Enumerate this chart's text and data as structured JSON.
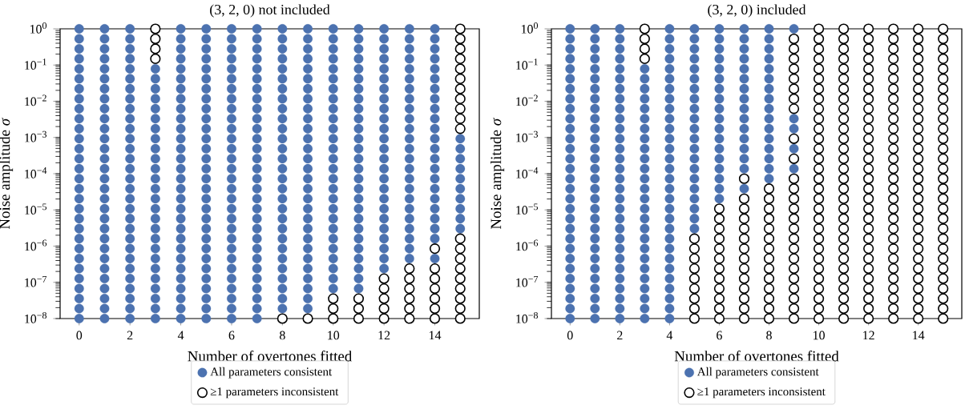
{
  "chart_data": [
    {
      "type": "scatter",
      "title": "(3, 2, 0) not included",
      "xlabel": "Number of overtones fitted",
      "ylabel": "Noise amplitude *σ*",
      "xlim": [
        -0.75,
        15.75
      ],
      "ylim": [
        1e-08,
        1
      ],
      "log": "y",
      "legend": "bottom",
      "marker": "circle",
      "xticks": [
        0,
        2,
        4,
        6,
        8,
        10,
        12,
        14
      ],
      "yticks": [
        {
          "value": 1e-08,
          "label": "10$^{−8}$"
        },
        {
          "value": 1e-07,
          "label": "10$^{−7}$"
        },
        {
          "value": 1e-06,
          "label": "10$^{−6}$"
        },
        {
          "value": 1e-05,
          "label": "10$^{−5}$"
        },
        {
          "value": 0.0001,
          "label": "10$^{−4}$"
        },
        {
          "value": 0.001,
          "label": "10$^{−3}$"
        },
        {
          "value": 0.01,
          "label": "10$^{−2}$"
        },
        {
          "value": 0.1,
          "label": "10$^{−1}$"
        },
        {
          "value": 1,
          "label": "10$^{0}$"
        }
      ],
      "series": [
        {
          "name": "All parameters consistent",
          "color": "#4c72b0",
          "x": [
            0,
            0,
            0,
            0,
            0,
            0,
            0,
            0,
            0,
            0,
            0,
            0,
            0,
            0,
            0,
            0,
            0,
            0,
            0,
            0,
            0,
            0,
            0,
            0,
            0,
            0,
            0,
            0,
            0,
            0,
            1,
            1,
            1,
            1,
            1,
            1,
            1,
            1,
            1,
            1,
            1,
            1,
            1,
            1,
            1,
            1,
            1,
            1,
            1,
            1,
            1,
            1,
            1,
            1,
            1,
            1,
            1,
            1,
            1,
            1,
            2,
            2,
            2,
            2,
            2,
            2,
            2,
            2,
            2,
            2,
            2,
            2,
            2,
            2,
            2,
            2,
            2,
            2,
            2,
            2,
            2,
            2,
            2,
            2,
            2,
            2,
            2,
            2,
            2,
            2,
            3,
            3,
            3,
            3,
            3,
            3,
            3,
            3,
            3,
            3,
            3,
            3,
            3,
            3,
            3,
            3,
            3,
            3,
            3,
            3,
            3,
            3,
            3,
            3,
            3,
            3,
            4,
            4,
            4,
            4,
            4,
            4,
            4,
            4,
            4,
            4,
            4,
            4,
            4,
            4,
            4,
            4,
            4,
            4,
            4,
            4,
            4,
            4,
            4,
            4,
            4,
            4,
            4,
            4,
            4,
            4,
            5,
            5,
            5,
            5,
            5,
            5,
            5,
            5,
            5,
            5,
            5,
            5,
            5,
            5,
            5,
            5,
            5,
            5,
            5,
            5,
            5,
            5,
            5,
            5,
            5,
            5,
            5,
            5,
            5,
            5,
            6,
            6,
            6,
            6,
            6,
            6,
            6,
            6,
            6,
            6,
            6,
            6,
            6,
            6,
            6,
            6,
            6,
            6,
            6,
            6,
            6,
            6,
            6,
            6,
            6,
            6,
            6,
            6,
            6,
            6,
            7,
            7,
            7,
            7,
            7,
            7,
            7,
            7,
            7,
            7,
            7,
            7,
            7,
            7,
            7,
            7,
            7,
            7,
            7,
            7,
            7,
            7,
            7,
            7,
            7,
            7,
            7,
            7,
            7,
            7,
            8,
            8,
            8,
            8,
            8,
            8,
            8,
            8,
            8,
            8,
            8,
            8,
            8,
            8,
            8,
            8,
            8,
            8,
            8,
            8,
            8,
            8,
            8,
            8,
            8,
            8,
            8,
            8,
            8,
            9,
            9,
            9,
            9,
            9,
            9,
            9,
            9,
            9,
            9,
            9,
            9,
            9,
            9,
            9,
            9,
            9,
            9,
            9,
            9,
            9,
            9,
            9,
            9,
            9,
            9,
            9,
            9,
            9,
            10,
            10,
            10,
            10,
            10,
            10,
            10,
            10,
            10,
            10,
            10,
            10,
            10,
            10,
            10,
            10,
            10,
            10,
            10,
            10,
            10,
            10,
            10,
            10,
            10,
            10,
            10,
            11,
            11,
            11,
            11,
            11,
            11,
            11,
            11,
            11,
            11,
            11,
            11,
            11,
            11,
            11,
            11,
            11,
            11,
            11,
            11,
            11,
            11,
            11,
            11,
            11,
            11,
            11,
            12,
            12,
            12,
            12,
            12,
            12,
            12,
            12,
            12,
            12,
            12,
            12,
            12,
            12,
            12,
            12,
            12,
            12,
            12,
            12,
            12,
            12,
            12,
            12,
            12,
            13,
            13,
            13,
            13,
            13,
            13,
            13,
            13,
            13,
            13,
            13,
            13,
            13,
            13,
            13,
            13,
            13,
            13,
            13,
            13,
            13,
            13,
            13,
            13,
            14,
            14,
            14,
            14,
            14,
            14,
            14,
            14,
            14,
            14,
            14,
            14,
            14,
            14,
            14,
            14,
            14,
            14,
            14,
            14,
            14,
            14,
            14,
            15,
            15,
            15,
            15,
            15,
            15,
            15,
            15,
            15,
            15
          ],
          "values": [
            1e-08,
            1.89e-08,
            3.56e-08,
            6.72e-08,
            1.27e-07,
            2.4e-07,
            4.52e-07,
            8.53e-07,
            1.61e-06,
            3.04e-06,
            5.74e-06,
            1.08e-05,
            2.04e-05,
            3.86e-05,
            7.28e-05,
            0.000137,
            0.000259,
            0.000489,
            0.000924,
            0.00174,
            0.00329,
            0.00621,
            0.0117,
            0.0221,
            0.0418,
            0.0788,
            0.149,
            0.281,
            0.53,
            1,
            1e-08,
            1.89e-08,
            3.56e-08,
            6.72e-08,
            1.27e-07,
            2.4e-07,
            4.52e-07,
            8.53e-07,
            1.61e-06,
            3.04e-06,
            5.74e-06,
            1.08e-05,
            2.04e-05,
            3.86e-05,
            7.28e-05,
            0.000137,
            0.000259,
            0.000489,
            0.000924,
            0.00174,
            0.00329,
            0.00621,
            0.0117,
            0.0221,
            0.0418,
            0.0788,
            0.149,
            0.281,
            0.53,
            1,
            1e-08,
            1.89e-08,
            3.56e-08,
            6.72e-08,
            1.27e-07,
            2.4e-07,
            4.52e-07,
            8.53e-07,
            1.61e-06,
            3.04e-06,
            5.74e-06,
            1.08e-05,
            2.04e-05,
            3.86e-05,
            7.28e-05,
            0.000137,
            0.000259,
            0.000489,
            0.000924,
            0.00174,
            0.00329,
            0.00621,
            0.0117,
            0.0221,
            0.0418,
            0.0788,
            0.149,
            0.281,
            0.53,
            1,
            1e-08,
            1.89e-08,
            3.56e-08,
            6.72e-08,
            1.27e-07,
            2.4e-07,
            4.52e-07,
            8.53e-07,
            1.61e-06,
            3.04e-06,
            5.74e-06,
            1.08e-05,
            2.04e-05,
            3.86e-05,
            7.28e-05,
            0.000137,
            0.000259,
            0.000489,
            0.000924,
            0.00174,
            0.00329,
            0.00621,
            0.0117,
            0.0221,
            0.0418,
            0.0788,
            1e-08,
            1.89e-08,
            3.56e-08,
            6.72e-08,
            1.27e-07,
            2.4e-07,
            4.52e-07,
            8.53e-07,
            1.61e-06,
            3.04e-06,
            5.74e-06,
            1.08e-05,
            2.04e-05,
            3.86e-05,
            7.28e-05,
            0.000137,
            0.000259,
            0.000489,
            0.000924,
            0.00174,
            0.00329,
            0.00621,
            0.0117,
            0.0221,
            0.0418,
            0.0788,
            0.149,
            0.281,
            0.53,
            1,
            1e-08,
            1.89e-08,
            3.56e-08,
            6.72e-08,
            1.27e-07,
            2.4e-07,
            4.52e-07,
            8.53e-07,
            1.61e-06,
            3.04e-06,
            5.74e-06,
            1.08e-05,
            2.04e-05,
            3.86e-05,
            7.28e-05,
            0.000137,
            0.000259,
            0.000489,
            0.000924,
            0.00174,
            0.00329,
            0.00621,
            0.0117,
            0.0221,
            0.0418,
            0.0788,
            0.149,
            0.281,
            0.53,
            1,
            1e-08,
            1.89e-08,
            3.56e-08,
            6.72e-08,
            1.27e-07,
            2.4e-07,
            4.52e-07,
            8.53e-07,
            1.61e-06,
            3.04e-06,
            5.74e-06,
            1.08e-05,
            2.04e-05,
            3.86e-05,
            7.28e-05,
            0.000137,
            0.000259,
            0.000489,
            0.000924,
            0.00174,
            0.00329,
            0.00621,
            0.0117,
            0.0221,
            0.0418,
            0.0788,
            0.149,
            0.281,
            0.53,
            1,
            1e-08,
            1.89e-08,
            3.56e-08,
            6.72e-08,
            1.27e-07,
            2.4e-07,
            4.52e-07,
            8.53e-07,
            1.61e-06,
            3.04e-06,
            5.74e-06,
            1.08e-05,
            2.04e-05,
            3.86e-05,
            7.28e-05,
            0.000137,
            0.000259,
            0.000489,
            0.000924,
            0.00174,
            0.00329,
            0.00621,
            0.0117,
            0.0221,
            0.0418,
            0.0788,
            0.149,
            0.281,
            0.53,
            1,
            1.89e-08,
            3.56e-08,
            6.72e-08,
            1.27e-07,
            2.4e-07,
            4.52e-07,
            8.53e-07,
            1.61e-06,
            3.04e-06,
            5.74e-06,
            1.08e-05,
            2.04e-05,
            3.86e-05,
            7.28e-05,
            0.000137,
            0.000259,
            0.000489,
            0.000924,
            0.00174,
            0.00329,
            0.00621,
            0.0117,
            0.0221,
            0.0418,
            0.0788,
            0.149,
            0.281,
            0.53,
            1,
            1.89e-08,
            3.56e-08,
            6.72e-08,
            1.27e-07,
            2.4e-07,
            4.52e-07,
            8.53e-07,
            1.61e-06,
            3.04e-06,
            5.74e-06,
            1.08e-05,
            2.04e-05,
            3.86e-05,
            7.28e-05,
            0.000137,
            0.000259,
            0.000489,
            0.000924,
            0.00174,
            0.00329,
            0.00621,
            0.0117,
            0.0221,
            0.0418,
            0.0788,
            0.149,
            0.281,
            0.53,
            1,
            6.72e-08,
            1.27e-07,
            2.4e-07,
            4.52e-07,
            8.53e-07,
            1.61e-06,
            3.04e-06,
            5.74e-06,
            1.08e-05,
            2.04e-05,
            3.86e-05,
            7.28e-05,
            0.000137,
            0.000259,
            0.000489,
            0.000924,
            0.00174,
            0.00329,
            0.00621,
            0.0117,
            0.0221,
            0.0418,
            0.0788,
            0.149,
            0.281,
            0.53,
            1,
            6.72e-08,
            1.27e-07,
            2.4e-07,
            4.52e-07,
            8.53e-07,
            1.61e-06,
            3.04e-06,
            5.74e-06,
            1.08e-05,
            2.04e-05,
            3.86e-05,
            7.28e-05,
            0.000137,
            0.000259,
            0.000489,
            0.000924,
            0.00174,
            0.00329,
            0.00621,
            0.0117,
            0.0221,
            0.0418,
            0.0788,
            0.149,
            0.281,
            0.53,
            1,
            2.4e-07,
            4.52e-07,
            8.53e-07,
            1.61e-06,
            3.04e-06,
            5.74e-06,
            1.08e-05,
            2.04e-05,
            3.86e-05,
            7.28e-05,
            0.000137,
            0.000259,
            0.000489,
            0.000924,
            0.00174,
            0.00329,
            0.00621,
            0.0117,
            0.0221,
            0.0418,
            0.0788,
            0.149,
            0.281,
            0.53,
            1,
            4.52e-07,
            8.53e-07,
            1.61e-06,
            3.04e-06,
            5.74e-06,
            1.08e-05,
            2.04e-05,
            3.86e-05,
            7.28e-05,
            0.000137,
            0.000259,
            0.000489,
            0.000924,
            0.00174,
            0.00329,
            0.00621,
            0.0117,
            0.0221,
            0.0418,
            0.0788,
            0.149,
            0.281,
            0.53,
            1,
            4.52e-07,
            1.61e-06,
            3.04e-06,
            5.74e-06,
            1.08e-05,
            2.04e-05,
            3.86e-05,
            7.28e-05,
            0.000137,
            0.000259,
            0.000489,
            0.000924,
            0.00174,
            0.00329,
            0.00621,
            0.0117,
            0.0221,
            0.0418,
            0.0788,
            0.149,
            0.281,
            0.53,
            1,
            3.04e-06,
            5.74e-06,
            1.08e-05,
            2.04e-05,
            3.86e-05,
            7.28e-05,
            0.000137,
            0.000259,
            0.000489,
            0.000924
          ]
        },
        {
          "name": "≥1 parameters inconsistent",
          "color": "#000000",
          "x": [
            3,
            3,
            3,
            3,
            8,
            9,
            10,
            10,
            10,
            11,
            11,
            11,
            12,
            12,
            12,
            12,
            12,
            13,
            13,
            13,
            13,
            13,
            13,
            14,
            14,
            14,
            14,
            14,
            14,
            14,
            15,
            15,
            15,
            15,
            15,
            15,
            15,
            15,
            15,
            15,
            15,
            15,
            15,
            15,
            15,
            15,
            15,
            15,
            15,
            15
          ],
          "values": [
            0.149,
            0.281,
            0.53,
            1,
            1e-08,
            1e-08,
            1e-08,
            1.89e-08,
            3.56e-08,
            1e-08,
            1.89e-08,
            3.56e-08,
            1e-08,
            1.89e-08,
            3.56e-08,
            6.72e-08,
            1.27e-07,
            1e-08,
            1.89e-08,
            3.56e-08,
            6.72e-08,
            1.27e-07,
            2.4e-07,
            1e-08,
            1.89e-08,
            3.56e-08,
            6.72e-08,
            1.27e-07,
            2.4e-07,
            8.53e-07,
            1e-08,
            1.89e-08,
            3.56e-08,
            6.72e-08,
            1.27e-07,
            2.4e-07,
            4.52e-07,
            8.53e-07,
            1.61e-06,
            0.00174,
            0.00329,
            0.00621,
            0.0117,
            0.0221,
            0.0418,
            0.0788,
            0.149,
            0.281,
            0.53,
            1
          ]
        }
      ]
    },
    {
      "type": "scatter",
      "title": "(3, 2, 0) included",
      "xlabel": "Number of overtones fitted",
      "ylabel": "Noise amplitude *σ*",
      "xlim": [
        -0.75,
        15.75
      ],
      "ylim": [
        1e-08,
        1
      ],
      "log": "y",
      "legend": "bottom",
      "marker": "circle",
      "xticks": [
        0,
        2,
        4,
        6,
        8,
        10,
        12,
        14
      ],
      "yticks": [
        {
          "value": 1e-08,
          "label": "10$^{−8}$"
        },
        {
          "value": 1e-07,
          "label": "10$^{−7}$"
        },
        {
          "value": 1e-06,
          "label": "10$^{−6}$"
        },
        {
          "value": 1e-05,
          "label": "10$^{−5}$"
        },
        {
          "value": 0.0001,
          "label": "10$^{−4}$"
        },
        {
          "value": 0.001,
          "label": "10$^{−3}$"
        },
        {
          "value": 0.01,
          "label": "10$^{−2}$"
        },
        {
          "value": 0.1,
          "label": "10$^{−1}$"
        },
        {
          "value": 1,
          "label": "10$^{0}$"
        }
      ],
      "series": [
        {
          "name": "All parameters consistent",
          "color": "#4c72b0",
          "x": [
            0,
            0,
            0,
            0,
            0,
            0,
            0,
            0,
            0,
            0,
            0,
            0,
            0,
            0,
            0,
            0,
            0,
            0,
            0,
            0,
            0,
            0,
            0,
            0,
            0,
            0,
            0,
            0,
            0,
            0,
            1,
            1,
            1,
            1,
            1,
            1,
            1,
            1,
            1,
            1,
            1,
            1,
            1,
            1,
            1,
            1,
            1,
            1,
            1,
            1,
            1,
            1,
            1,
            1,
            1,
            1,
            1,
            1,
            1,
            1,
            2,
            2,
            2,
            2,
            2,
            2,
            2,
            2,
            2,
            2,
            2,
            2,
            2,
            2,
            2,
            2,
            2,
            2,
            2,
            2,
            2,
            2,
            2,
            2,
            2,
            2,
            2,
            2,
            2,
            2,
            3,
            3,
            3,
            3,
            3,
            3,
            3,
            3,
            3,
            3,
            3,
            3,
            3,
            3,
            3,
            3,
            3,
            3,
            3,
            3,
            3,
            3,
            3,
            3,
            3,
            3,
            4,
            4,
            4,
            4,
            4,
            4,
            4,
            4,
            4,
            4,
            4,
            4,
            4,
            4,
            4,
            4,
            4,
            4,
            4,
            4,
            4,
            4,
            4,
            4,
            4,
            4,
            4,
            4,
            4,
            4,
            5,
            5,
            5,
            5,
            5,
            5,
            5,
            5,
            5,
            5,
            5,
            5,
            5,
            5,
            5,
            5,
            5,
            5,
            5,
            5,
            5,
            6,
            6,
            6,
            6,
            6,
            6,
            6,
            6,
            6,
            6,
            6,
            6,
            6,
            6,
            6,
            6,
            6,
            6,
            7,
            7,
            7,
            7,
            7,
            7,
            7,
            7,
            7,
            7,
            7,
            7,
            7,
            7,
            7,
            7,
            8,
            8,
            8,
            8,
            8,
            8,
            8,
            8,
            8,
            8,
            8,
            8,
            8,
            8,
            8,
            8,
            9,
            9,
            9,
            9,
            9
          ],
          "values": [
            1e-08,
            1.89e-08,
            3.56e-08,
            6.72e-08,
            1.27e-07,
            2.4e-07,
            4.52e-07,
            8.53e-07,
            1.61e-06,
            3.04e-06,
            5.74e-06,
            1.08e-05,
            2.04e-05,
            3.86e-05,
            7.28e-05,
            0.000137,
            0.000259,
            0.000489,
            0.000924,
            0.00174,
            0.00329,
            0.00621,
            0.0117,
            0.0221,
            0.0418,
            0.0788,
            0.149,
            0.281,
            0.53,
            1,
            1e-08,
            1.89e-08,
            3.56e-08,
            6.72e-08,
            1.27e-07,
            2.4e-07,
            4.52e-07,
            8.53e-07,
            1.61e-06,
            3.04e-06,
            5.74e-06,
            1.08e-05,
            2.04e-05,
            3.86e-05,
            7.28e-05,
            0.000137,
            0.000259,
            0.000489,
            0.000924,
            0.00174,
            0.00329,
            0.00621,
            0.0117,
            0.0221,
            0.0418,
            0.0788,
            0.149,
            0.281,
            0.53,
            1,
            1e-08,
            1.89e-08,
            3.56e-08,
            6.72e-08,
            1.27e-07,
            2.4e-07,
            4.52e-07,
            8.53e-07,
            1.61e-06,
            3.04e-06,
            5.74e-06,
            1.08e-05,
            2.04e-05,
            3.86e-05,
            7.28e-05,
            0.000137,
            0.000259,
            0.000489,
            0.000924,
            0.00174,
            0.00329,
            0.00621,
            0.0117,
            0.0221,
            0.0418,
            0.0788,
            0.149,
            0.281,
            0.53,
            1,
            1e-08,
            1.89e-08,
            3.56e-08,
            6.72e-08,
            1.27e-07,
            2.4e-07,
            4.52e-07,
            8.53e-07,
            1.61e-06,
            3.04e-06,
            5.74e-06,
            1.08e-05,
            2.04e-05,
            3.86e-05,
            7.28e-05,
            0.000137,
            0.000259,
            0.000489,
            0.000924,
            0.00174,
            0.00329,
            0.00621,
            0.0117,
            0.0221,
            0.0418,
            0.0788,
            1e-08,
            1.89e-08,
            3.56e-08,
            6.72e-08,
            1.27e-07,
            2.4e-07,
            4.52e-07,
            8.53e-07,
            1.61e-06,
            3.04e-06,
            5.74e-06,
            1.08e-05,
            2.04e-05,
            3.86e-05,
            7.28e-05,
            0.000137,
            0.000259,
            0.000489,
            0.000924,
            0.00174,
            0.00329,
            0.00621,
            0.0117,
            0.0221,
            0.0418,
            0.0788,
            0.149,
            0.281,
            0.53,
            1,
            3.04e-06,
            5.74e-06,
            1.08e-05,
            2.04e-05,
            3.86e-05,
            7.28e-05,
            0.000137,
            0.000259,
            0.000489,
            0.000924,
            0.00174,
            0.00329,
            0.00621,
            0.0117,
            0.0221,
            0.0418,
            0.0788,
            0.149,
            0.281,
            0.53,
            1,
            2.04e-05,
            3.86e-05,
            7.28e-05,
            0.000137,
            0.000259,
            0.000489,
            0.000924,
            0.00174,
            0.00329,
            0.00621,
            0.0117,
            0.0221,
            0.0418,
            0.0788,
            0.149,
            0.281,
            0.53,
            1,
            3.86e-05,
            0.000137,
            0.000259,
            0.000489,
            0.000924,
            0.00174,
            0.00329,
            0.00621,
            0.0117,
            0.0221,
            0.0418,
            0.0788,
            0.149,
            0.281,
            0.53,
            1,
            7.28e-05,
            0.000137,
            0.000259,
            0.000489,
            0.000924,
            0.00174,
            0.00329,
            0.00621,
            0.0117,
            0.0221,
            0.0418,
            0.0788,
            0.149,
            0.281,
            0.53,
            1,
            0.000137,
            0.000489,
            0.00174,
            0.00329,
            1
          ]
        },
        {
          "name": "≥1 parameters inconsistent",
          "color": "#000000",
          "x": [
            3,
            3,
            3,
            3,
            5,
            5,
            5,
            5,
            5,
            5,
            5,
            5,
            5,
            6,
            6,
            6,
            6,
            6,
            6,
            6,
            6,
            6,
            6,
            6,
            6,
            7,
            7,
            7,
            7,
            7,
            7,
            7,
            7,
            7,
            7,
            7,
            7,
            7,
            7,
            8,
            8,
            8,
            8,
            8,
            8,
            8,
            8,
            8,
            8,
            8,
            8,
            8,
            8,
            9,
            9,
            9,
            9,
            9,
            9,
            9,
            9,
            9,
            9,
            9,
            9,
            9,
            9,
            9,
            9,
            9,
            9,
            9,
            9,
            9,
            9,
            9,
            9,
            9,
            10,
            10,
            10,
            10,
            10,
            10,
            10,
            10,
            10,
            10,
            10,
            10,
            10,
            10,
            10,
            10,
            10,
            10,
            10,
            10,
            10,
            10,
            10,
            10,
            10,
            10,
            10,
            10,
            10,
            10,
            11,
            11,
            11,
            11,
            11,
            11,
            11,
            11,
            11,
            11,
            11,
            11,
            11,
            11,
            11,
            11,
            11,
            11,
            11,
            11,
            11,
            11,
            11,
            11,
            11,
            11,
            11,
            11,
            11,
            11,
            12,
            12,
            12,
            12,
            12,
            12,
            12,
            12,
            12,
            12,
            12,
            12,
            12,
            12,
            12,
            12,
            12,
            12,
            12,
            12,
            12,
            12,
            12,
            12,
            12,
            12,
            12,
            12,
            12,
            12,
            13,
            13,
            13,
            13,
            13,
            13,
            13,
            13,
            13,
            13,
            13,
            13,
            13,
            13,
            13,
            13,
            13,
            13,
            13,
            13,
            13,
            13,
            13,
            13,
            13,
            13,
            13,
            13,
            13,
            13,
            14,
            14,
            14,
            14,
            14,
            14,
            14,
            14,
            14,
            14,
            14,
            14,
            14,
            14,
            14,
            14,
            14,
            14,
            14,
            14,
            14,
            14,
            14,
            14,
            14,
            14,
            14,
            14,
            14,
            14,
            15,
            15,
            15,
            15,
            15,
            15,
            15,
            15,
            15,
            15,
            15,
            15,
            15,
            15,
            15,
            15,
            15,
            15,
            15,
            15,
            15,
            15,
            15,
            15,
            15,
            15,
            15,
            15,
            15,
            15
          ],
          "values": [
            0.149,
            0.281,
            0.53,
            1,
            1e-08,
            1.89e-08,
            3.56e-08,
            6.72e-08,
            1.27e-07,
            2.4e-07,
            4.52e-07,
            8.53e-07,
            1.61e-06,
            1e-08,
            1.89e-08,
            3.56e-08,
            6.72e-08,
            1.27e-07,
            2.4e-07,
            4.52e-07,
            8.53e-07,
            1.61e-06,
            3.04e-06,
            5.74e-06,
            1.08e-05,
            1e-08,
            1.89e-08,
            3.56e-08,
            6.72e-08,
            1.27e-07,
            2.4e-07,
            4.52e-07,
            8.53e-07,
            1.61e-06,
            3.04e-06,
            5.74e-06,
            1.08e-05,
            2.04e-05,
            7.28e-05,
            1e-08,
            1.89e-08,
            3.56e-08,
            6.72e-08,
            1.27e-07,
            2.4e-07,
            4.52e-07,
            8.53e-07,
            1.61e-06,
            3.04e-06,
            5.74e-06,
            1.08e-05,
            2.04e-05,
            3.86e-05,
            1e-08,
            1.89e-08,
            3.56e-08,
            6.72e-08,
            1.27e-07,
            2.4e-07,
            4.52e-07,
            8.53e-07,
            1.61e-06,
            3.04e-06,
            5.74e-06,
            1.08e-05,
            2.04e-05,
            3.86e-05,
            7.28e-05,
            0.000259,
            0.000924,
            0.00621,
            0.0117,
            0.0221,
            0.0418,
            0.0788,
            0.149,
            0.281,
            0.53,
            1e-08,
            1.89e-08,
            3.56e-08,
            6.72e-08,
            1.27e-07,
            2.4e-07,
            4.52e-07,
            8.53e-07,
            1.61e-06,
            3.04e-06,
            5.74e-06,
            1.08e-05,
            2.04e-05,
            3.86e-05,
            7.28e-05,
            0.000137,
            0.000259,
            0.000489,
            0.000924,
            0.00174,
            0.00329,
            0.00621,
            0.0117,
            0.0221,
            0.0418,
            0.0788,
            0.149,
            0.281,
            0.53,
            1,
            1e-08,
            1.89e-08,
            3.56e-08,
            6.72e-08,
            1.27e-07,
            2.4e-07,
            4.52e-07,
            8.53e-07,
            1.61e-06,
            3.04e-06,
            5.74e-06,
            1.08e-05,
            2.04e-05,
            3.86e-05,
            7.28e-05,
            0.000137,
            0.000259,
            0.000489,
            0.000924,
            0.00174,
            0.00329,
            0.00621,
            0.0117,
            0.0221,
            0.0418,
            0.0788,
            0.149,
            0.281,
            0.53,
            1,
            1e-08,
            1.89e-08,
            3.56e-08,
            6.72e-08,
            1.27e-07,
            2.4e-07,
            4.52e-07,
            8.53e-07,
            1.61e-06,
            3.04e-06,
            5.74e-06,
            1.08e-05,
            2.04e-05,
            3.86e-05,
            7.28e-05,
            0.000137,
            0.000259,
            0.000489,
            0.000924,
            0.00174,
            0.00329,
            0.00621,
            0.0117,
            0.0221,
            0.0418,
            0.0788,
            0.149,
            0.281,
            0.53,
            1,
            1e-08,
            1.89e-08,
            3.56e-08,
            6.72e-08,
            1.27e-07,
            2.4e-07,
            4.52e-07,
            8.53e-07,
            1.61e-06,
            3.04e-06,
            5.74e-06,
            1.08e-05,
            2.04e-05,
            3.86e-05,
            7.28e-05,
            0.000137,
            0.000259,
            0.000489,
            0.000924,
            0.00174,
            0.00329,
            0.00621,
            0.0117,
            0.0221,
            0.0418,
            0.0788,
            0.149,
            0.281,
            0.53,
            1,
            1e-08,
            1.89e-08,
            3.56e-08,
            6.72e-08,
            1.27e-07,
            2.4e-07,
            4.52e-07,
            8.53e-07,
            1.61e-06,
            3.04e-06,
            5.74e-06,
            1.08e-05,
            2.04e-05,
            3.86e-05,
            7.28e-05,
            0.000137,
            0.000259,
            0.000489,
            0.000924,
            0.00174,
            0.00329,
            0.00621,
            0.0117,
            0.0221,
            0.0418,
            0.0788,
            0.149,
            0.281,
            0.53,
            1,
            1e-08,
            1.89e-08,
            3.56e-08,
            6.72e-08,
            1.27e-07,
            2.4e-07,
            4.52e-07,
            8.53e-07,
            1.61e-06,
            3.04e-06,
            5.74e-06,
            1.08e-05,
            2.04e-05,
            3.86e-05,
            7.28e-05,
            0.000137,
            0.000259,
            0.000489,
            0.000924,
            0.00174,
            0.00329,
            0.00621,
            0.0117,
            0.0221,
            0.0418,
            0.0788,
            0.149,
            0.281,
            0.53,
            1
          ]
        }
      ]
    }
  ]
}
